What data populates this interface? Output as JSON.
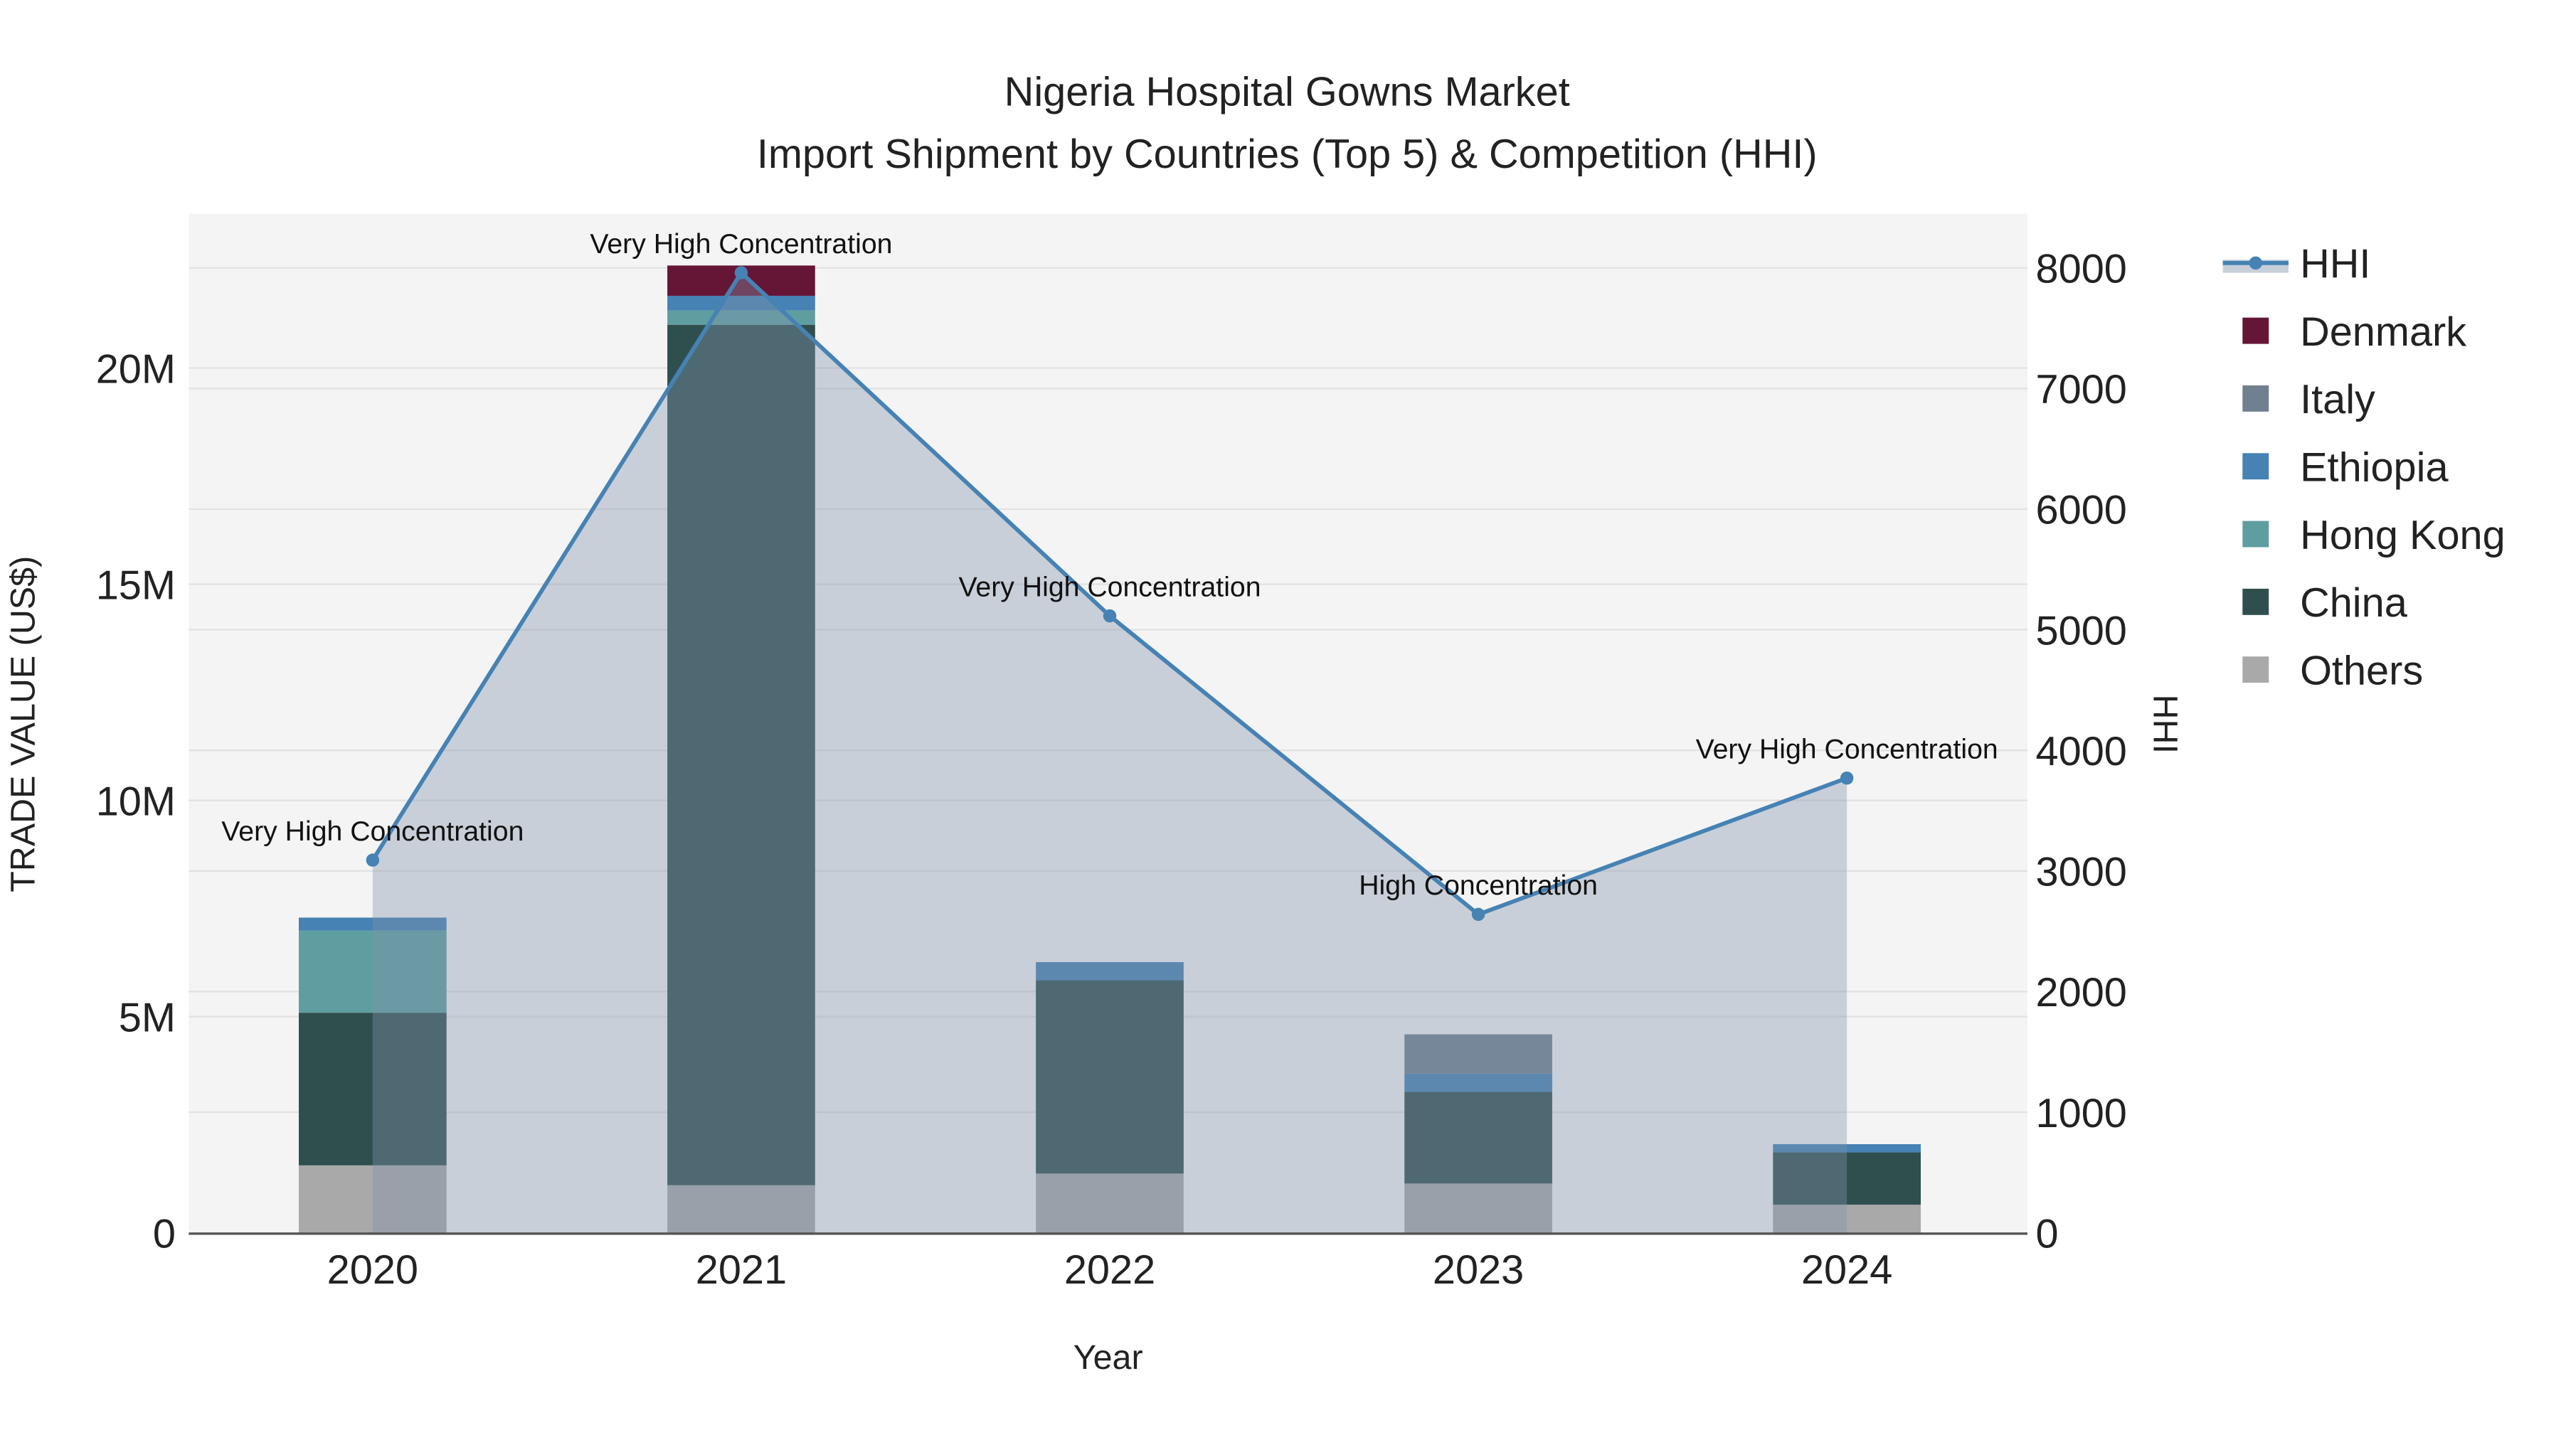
{
  "chart_data": {
    "type": "bar",
    "title": "Nigeria Hospital Gowns Market",
    "subtitle": "Import Shipment by Countries (Top 5) & Competition (HHI)",
    "xlabel": "Year",
    "ylabel": "TRADE VALUE (US$)",
    "y2label": "HHI",
    "categories": [
      "2020",
      "2021",
      "2022",
      "2023",
      "2024"
    ],
    "ylim": [
      0,
      23500000
    ],
    "y2lim": [
      0,
      8430
    ],
    "yticks": [
      0,
      5000000,
      10000000,
      15000000,
      20000000
    ],
    "ytick_labels": [
      "0",
      "5M",
      "10M",
      "15M",
      "20M"
    ],
    "y2ticks": [
      0,
      1000,
      2000,
      3000,
      4000,
      5000,
      6000,
      7000,
      8000
    ],
    "y2tick_labels": [
      "0",
      "1000",
      "2000",
      "3000",
      "4000",
      "5000",
      "6000",
      "7000",
      "8000"
    ],
    "grid": true,
    "legend_position": "right",
    "series": [
      {
        "name": "Others",
        "color": "#a9a9a9",
        "values": [
          1560000,
          1100000,
          1370000,
          1140000,
          650000
        ]
      },
      {
        "name": "China",
        "color": "#2f4f4f",
        "values": [
          3530000,
          19900000,
          4470000,
          2120000,
          1210000
        ]
      },
      {
        "name": "Hong Kong",
        "color": "#5f9ea0",
        "values": [
          1900000,
          330000,
          0,
          0,
          0
        ]
      },
      {
        "name": "Ethiopia",
        "color": "#4682b4",
        "values": [
          300000,
          340000,
          420000,
          420000,
          190000
        ]
      },
      {
        "name": "Italy",
        "color": "#708090",
        "values": [
          0,
          0,
          0,
          910000,
          0
        ]
      },
      {
        "name": "Denmark",
        "color": "#651536",
        "values": [
          0,
          700000,
          0,
          0,
          0
        ]
      }
    ],
    "hhi": {
      "name": "HHI",
      "color": "#4682b4",
      "values": [
        3090,
        7960,
        5115,
        2640,
        3770
      ],
      "annotations": [
        "Very High Concentration",
        "Very High Concentration",
        "Very High Concentration",
        "High Concentration",
        "Very High Concentration"
      ]
    },
    "legend_order": [
      "HHI",
      "Denmark",
      "Italy",
      "Ethiopia",
      "Hong Kong",
      "China",
      "Others"
    ]
  }
}
